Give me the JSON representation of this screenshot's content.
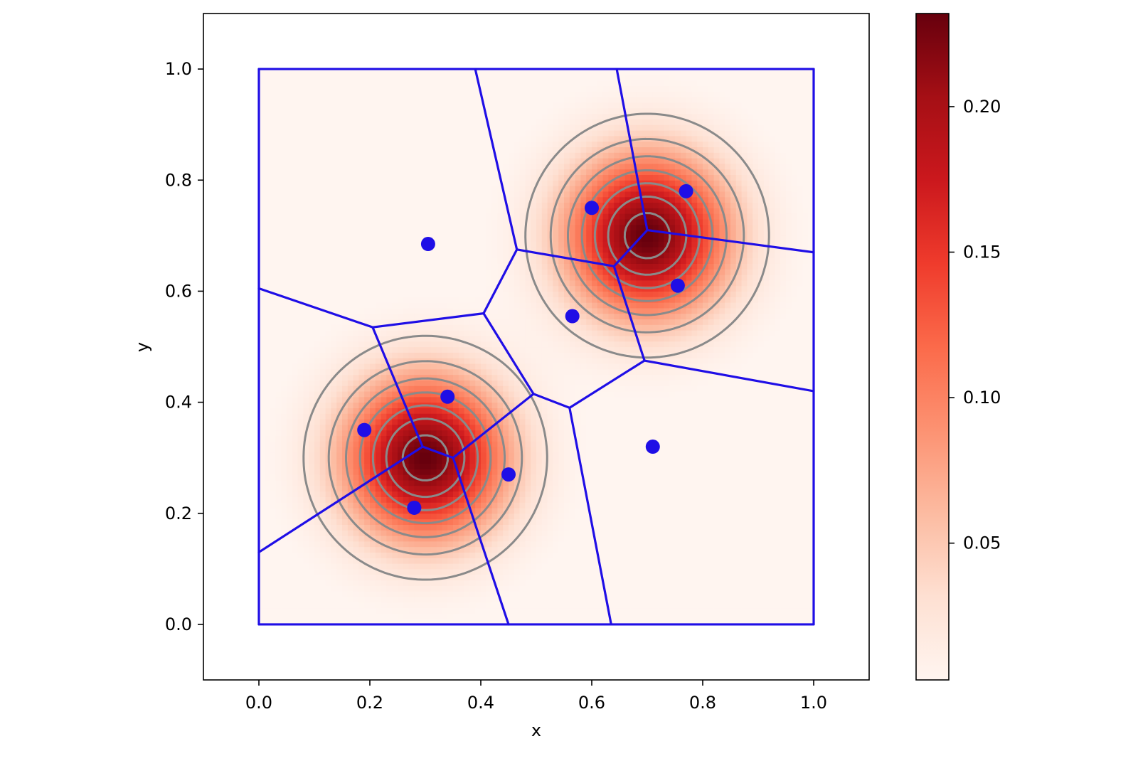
{
  "chart_data": {
    "type": "heatmap",
    "title": "",
    "xlabel": "x",
    "ylabel": "y",
    "xlim": [
      -0.1,
      1.1
    ],
    "ylim": [
      -0.1,
      1.1
    ],
    "x_ticks": [
      "0.0",
      "0.2",
      "0.4",
      "0.6",
      "0.8",
      "1.0"
    ],
    "y_ticks": [
      "0.0",
      "0.2",
      "0.4",
      "0.6",
      "0.8",
      "1.0"
    ],
    "grid": false,
    "colormap": "Reds",
    "colorbar": {
      "range": [
        0.003,
        0.232
      ],
      "ticks": [
        "0.05",
        "0.10",
        "0.15",
        "0.20"
      ]
    },
    "density_peaks": [
      {
        "x": 0.3,
        "y": 0.3
      },
      {
        "x": 0.7,
        "y": 0.7
      }
    ],
    "points": [
      {
        "x": 0.305,
        "y": 0.685
      },
      {
        "x": 0.19,
        "y": 0.35
      },
      {
        "x": 0.34,
        "y": 0.41
      },
      {
        "x": 0.45,
        "y": 0.27
      },
      {
        "x": 0.28,
        "y": 0.21
      },
      {
        "x": 0.6,
        "y": 0.75
      },
      {
        "x": 0.77,
        "y": 0.78
      },
      {
        "x": 0.755,
        "y": 0.61
      },
      {
        "x": 0.565,
        "y": 0.555
      },
      {
        "x": 0.71,
        "y": 0.32
      }
    ],
    "voronoi_edges": [
      [
        [
          0.0,
          1.0
        ],
        [
          1.0,
          1.0
        ]
      ],
      [
        [
          1.0,
          1.0
        ],
        [
          1.0,
          0.0
        ]
      ],
      [
        [
          1.0,
          0.0
        ],
        [
          0.0,
          0.0
        ]
      ],
      [
        [
          0.0,
          0.0
        ],
        [
          0.0,
          1.0
        ]
      ],
      [
        [
          0.0,
          0.605
        ],
        [
          0.205,
          0.535
        ]
      ],
      [
        [
          0.205,
          0.535
        ],
        [
          0.405,
          0.56
        ]
      ],
      [
        [
          0.405,
          0.56
        ],
        [
          0.465,
          0.675
        ]
      ],
      [
        [
          0.465,
          0.675
        ],
        [
          0.39,
          1.0
        ]
      ],
      [
        [
          0.465,
          0.675
        ],
        [
          0.64,
          0.645
        ]
      ],
      [
        [
          0.205,
          0.535
        ],
        [
          0.295,
          0.32
        ]
      ],
      [
        [
          0.405,
          0.56
        ],
        [
          0.495,
          0.415
        ]
      ],
      [
        [
          0.495,
          0.415
        ],
        [
          0.35,
          0.3
        ]
      ],
      [
        [
          0.295,
          0.32
        ],
        [
          0.35,
          0.3
        ]
      ],
      [
        [
          0.295,
          0.32
        ],
        [
          0.0,
          0.13
        ]
      ],
      [
        [
          0.35,
          0.3
        ],
        [
          0.45,
          0.0
        ]
      ],
      [
        [
          0.495,
          0.415
        ],
        [
          0.56,
          0.39
        ]
      ],
      [
        [
          0.56,
          0.39
        ],
        [
          0.635,
          0.0
        ]
      ],
      [
        [
          0.56,
          0.39
        ],
        [
          0.695,
          0.475
        ]
      ],
      [
        [
          0.695,
          0.475
        ],
        [
          1.0,
          0.42
        ]
      ],
      [
        [
          0.695,
          0.475
        ],
        [
          0.64,
          0.645
        ]
      ],
      [
        [
          0.64,
          0.645
        ],
        [
          0.7,
          0.71
        ]
      ],
      [
        [
          0.7,
          0.71
        ],
        [
          0.645,
          1.0
        ]
      ],
      [
        [
          0.7,
          0.71
        ],
        [
          1.0,
          0.67
        ]
      ]
    ]
  }
}
